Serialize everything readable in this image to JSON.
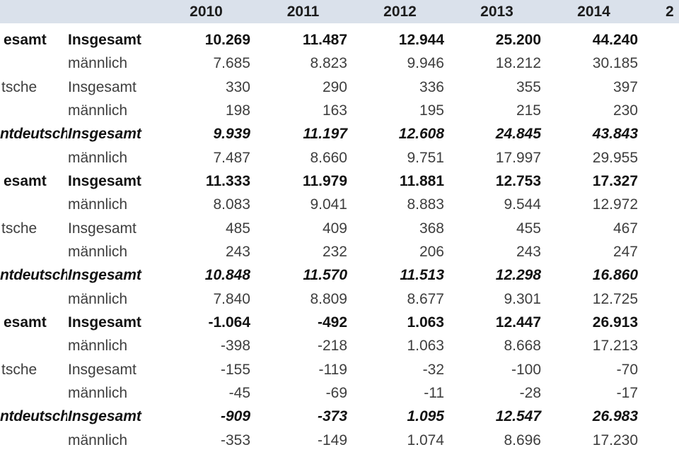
{
  "table": {
    "header": {
      "years": [
        "2010",
        "2011",
        "2012",
        "2013",
        "2014"
      ],
      "partial_year": "2"
    },
    "rows": [
      {
        "group": "esamt",
        "label": "Insgesamt",
        "style": "bold",
        "values": [
          "10.269",
          "11.487",
          "12.944",
          "25.200",
          "44.240"
        ]
      },
      {
        "group": "",
        "label": "männlich",
        "style": "regular",
        "values": [
          "7.685",
          "8.823",
          "9.946",
          "18.212",
          "30.185"
        ]
      },
      {
        "group": "tsche",
        "label": "Insgesamt",
        "style": "regular",
        "values": [
          "330",
          "290",
          "336",
          "355",
          "397"
        ]
      },
      {
        "group": "",
        "label": "männlich",
        "style": "regular",
        "values": [
          "198",
          "163",
          "195",
          "215",
          "230"
        ]
      },
      {
        "group": "ntdeutsch",
        "label": "Insgesamt",
        "style": "bold-italic",
        "values": [
          "9.939",
          "11.197",
          "12.608",
          "24.845",
          "43.843"
        ]
      },
      {
        "group": "",
        "label": "männlich",
        "style": "regular",
        "values": [
          "7.487",
          "8.660",
          "9.751",
          "17.997",
          "29.955"
        ]
      },
      {
        "group": "esamt",
        "label": "Insgesamt",
        "style": "bold",
        "values": [
          "11.333",
          "11.979",
          "11.881",
          "12.753",
          "17.327"
        ]
      },
      {
        "group": "",
        "label": "männlich",
        "style": "regular",
        "values": [
          "8.083",
          "9.041",
          "8.883",
          "9.544",
          "12.972"
        ]
      },
      {
        "group": "tsche",
        "label": "Insgesamt",
        "style": "regular",
        "values": [
          "485",
          "409",
          "368",
          "455",
          "467"
        ]
      },
      {
        "group": "",
        "label": "männlich",
        "style": "regular",
        "values": [
          "243",
          "232",
          "206",
          "243",
          "247"
        ]
      },
      {
        "group": "ntdeutsch",
        "label": "Insgesamt",
        "style": "bold-italic",
        "values": [
          "10.848",
          "11.570",
          "11.513",
          "12.298",
          "16.860"
        ]
      },
      {
        "group": "",
        "label": "männlich",
        "style": "regular",
        "values": [
          "7.840",
          "8.809",
          "8.677",
          "9.301",
          "12.725"
        ]
      },
      {
        "group": "esamt",
        "label": "Insgesamt",
        "style": "bold",
        "values": [
          "-1.064",
          "-492",
          "1.063",
          "12.447",
          "26.913"
        ]
      },
      {
        "group": "",
        "label": "männlich",
        "style": "regular",
        "values": [
          "-398",
          "-218",
          "1.063",
          "8.668",
          "17.213"
        ]
      },
      {
        "group": "tsche",
        "label": "Insgesamt",
        "style": "regular",
        "values": [
          "-155",
          "-119",
          "-32",
          "-100",
          "-70"
        ]
      },
      {
        "group": "",
        "label": "männlich",
        "style": "regular",
        "values": [
          "-45",
          "-69",
          "-11",
          "-28",
          "-17"
        ]
      },
      {
        "group": "ntdeutsch",
        "label": "Insgesamt",
        "style": "bold-italic",
        "values": [
          "-909",
          "-373",
          "1.095",
          "12.547",
          "26.983"
        ]
      },
      {
        "group": "",
        "label": "männlich",
        "style": "regular",
        "values": [
          "-353",
          "-149",
          "1.074",
          "8.696",
          "17.230"
        ]
      }
    ]
  },
  "colors": {
    "header_background": "#dae1eb",
    "text_regular": "#3e3e3e",
    "text_bold": "#121212",
    "body_background": "#ffffff"
  }
}
